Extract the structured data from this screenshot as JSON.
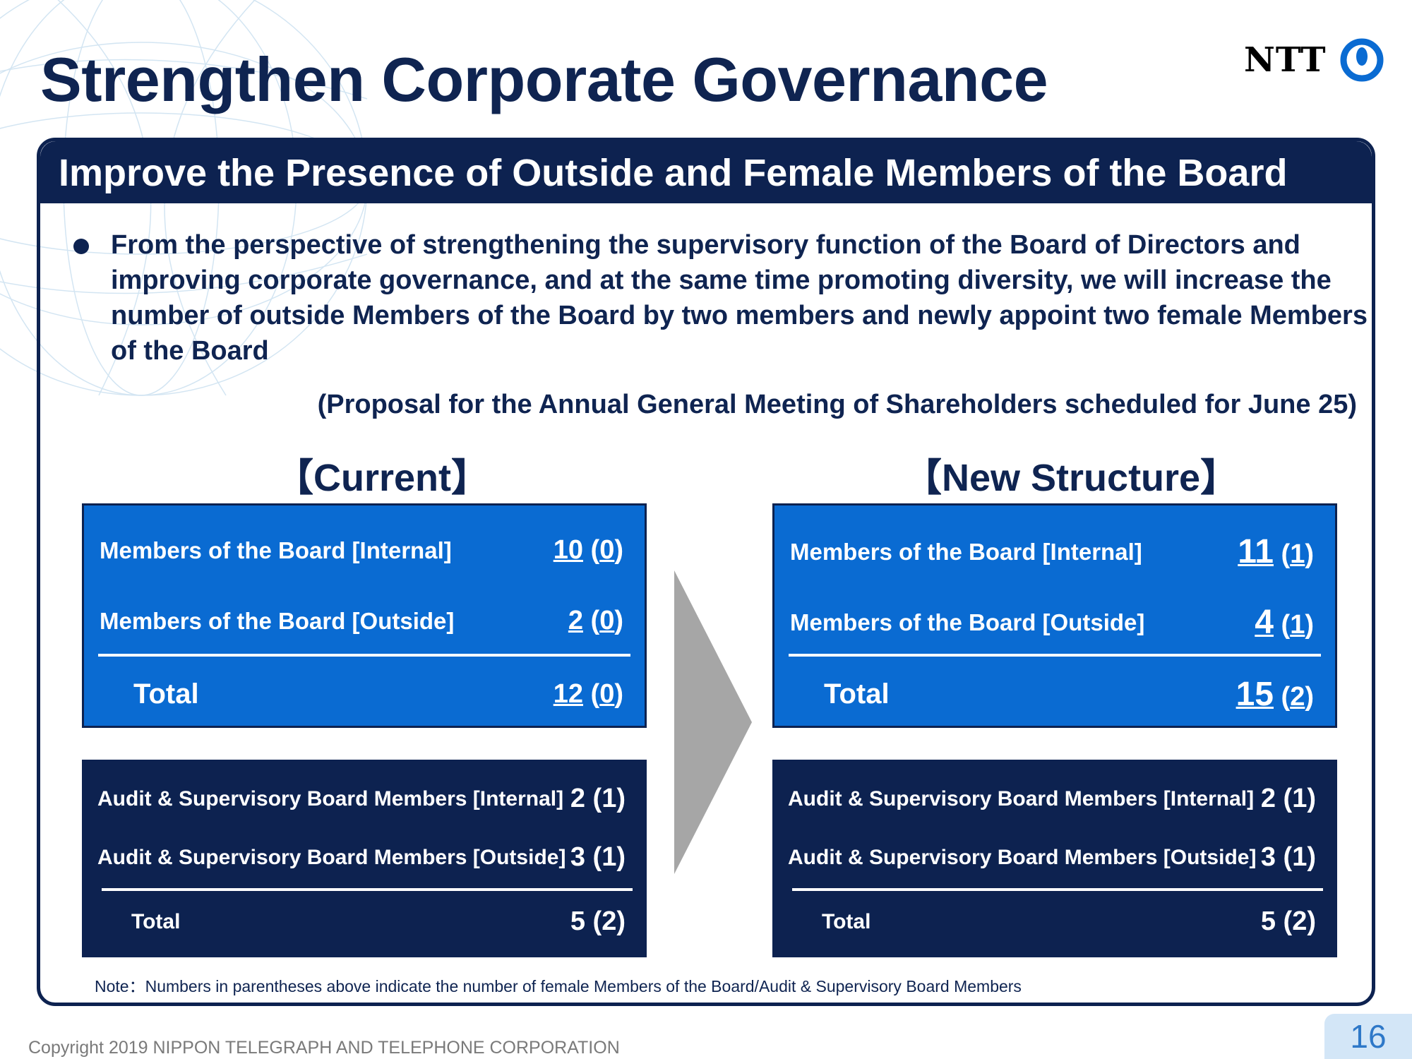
{
  "title": "Strengthen Corporate Governance",
  "logo": {
    "text": "NTT",
    "icon": "ntt-ring-logo-icon"
  },
  "panel": {
    "heading": "Improve the Presence of Outside and Female Members of the Board",
    "intro": "From the perspective of strengthening the supervisory function of the Board of Directors and improving corporate governance, and at the same time promoting diversity, we will increase the number of outside Members of the Board by two members and newly appoint two female Members of the Board",
    "proposal": "(Proposal for the Annual General Meeting of Shareholders scheduled for June 25)"
  },
  "current": {
    "heading": "【Current】",
    "board": {
      "internal": {
        "label": "Members of the Board [Internal]",
        "count": "10",
        "female": "0"
      },
      "outside": {
        "label": "Members of the Board [Outside]",
        "count": "2",
        "female": "0"
      },
      "total": {
        "label": "Total",
        "count": "12",
        "female": "0"
      }
    },
    "audit": {
      "internal": {
        "label": "Audit & Supervisory Board Members [Internal]",
        "value": "2 (1)"
      },
      "outside": {
        "label": "Audit & Supervisory Board Members [Outside]",
        "value": "3 (1)"
      },
      "total": {
        "label": "Total",
        "value": "5 (2)"
      }
    }
  },
  "new": {
    "heading": "【New Structure】",
    "board": {
      "internal": {
        "label": "Members of the Board [Internal]",
        "count": "11",
        "female": "1"
      },
      "outside": {
        "label": "Members of the Board [Outside]",
        "count": "4",
        "female": "1"
      },
      "total": {
        "label": "Total",
        "count": "15",
        "female": "2"
      }
    },
    "audit": {
      "internal": {
        "label": "Audit & Supervisory Board Members [Internal]",
        "value": "2 (1)"
      },
      "outside": {
        "label": "Audit & Supervisory Board Members [Outside]",
        "value": "3 (1)"
      },
      "total": {
        "label": "Total",
        "value": "5 (2)"
      }
    }
  },
  "note": "Note：Numbers in parentheses above indicate the number of female Members of the Board/Audit & Supervisory Board Members",
  "footer": {
    "copyright": "Copyright 2019 NIPPON TELEGRAPH AND TELEPHONE CORPORATION",
    "page": "16"
  },
  "colors": {
    "navy": "#0d2250",
    "blue": "#0a6bd2",
    "arrow": "#a6a6a6",
    "page_badge": "#d3e6f7"
  }
}
